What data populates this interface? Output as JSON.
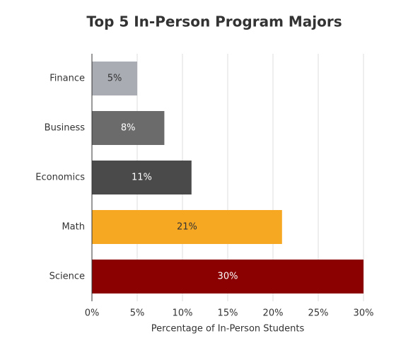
{
  "chart_data": {
    "type": "bar",
    "orientation": "horizontal",
    "title": "Top 5 In-Person Program Majors",
    "x_label": "Percentage of In-Person Students",
    "categories": [
      "Finance",
      "Business",
      "Economics",
      "Math",
      "Science"
    ],
    "values": [
      5,
      8,
      11,
      21,
      30
    ],
    "value_labels": [
      "5%",
      "8%",
      "11%",
      "21%",
      "30%"
    ],
    "colors": [
      "#a9acb3",
      "#6b6b6b",
      "#4a4a4a",
      "#f7a823",
      "#8b0000"
    ],
    "label_colors": [
      "#333333",
      "#ffffff",
      "#ffffff",
      "#333333",
      "#ffffff"
    ],
    "xlim": [
      0,
      30
    ],
    "xticks": [
      {
        "value": 0,
        "label": "0%"
      },
      {
        "value": 5,
        "label": "5%"
      },
      {
        "value": 10,
        "label": "10%"
      },
      {
        "value": 15,
        "label": "15%"
      },
      {
        "value": 20,
        "label": "20%"
      },
      {
        "value": 25,
        "label": "25%"
      },
      {
        "value": 30,
        "label": "30%"
      }
    ],
    "grid": true
  }
}
